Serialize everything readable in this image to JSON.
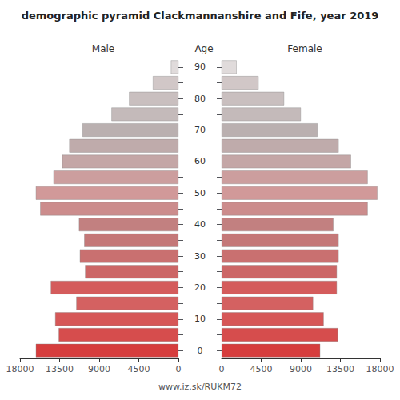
{
  "chart_data": {
    "type": "bar",
    "orientation": "horizontal",
    "title": "demographic pyramid Clackmannanshire and Fife, year 2019",
    "ylabel": "Age",
    "categories": [
      "0",
      null,
      "10",
      null,
      "20",
      null,
      "30",
      null,
      "40",
      null,
      "50",
      null,
      "60",
      null,
      "70",
      null,
      "80",
      null,
      "90"
    ],
    "series": [
      {
        "name": "Male",
        "values": [
          16200,
          13600,
          14000,
          11600,
          14500,
          10600,
          11200,
          10700,
          11300,
          15700,
          16200,
          14200,
          13200,
          12400,
          10900,
          7600,
          5600,
          2900,
          850
        ],
        "colors": [
          "#D63D3D",
          "#D64D4D",
          "#D65757",
          "#D46161",
          "#D45C5C",
          "#CC6666",
          "#C97070",
          "#C47878",
          "#C28080",
          "#CC8C8C",
          "#D19999",
          "#CC9E9E",
          "#C4A6A6",
          "#BFABAB",
          "#BAB0B0",
          "#C4BABA",
          "#C9BFBF",
          "#D1C7C7",
          "#E0DBDB"
        ]
      },
      {
        "name": "Female",
        "values": [
          11200,
          13200,
          11600,
          10400,
          13100,
          13100,
          13300,
          13300,
          12700,
          16600,
          17700,
          16600,
          14700,
          13300,
          10900,
          9000,
          7100,
          4200,
          1700
        ],
        "colors": [
          "#D63D3D",
          "#D64D4D",
          "#D65757",
          "#D46161",
          "#D45C5C",
          "#CC6666",
          "#C97070",
          "#C47878",
          "#C28080",
          "#CC8C8C",
          "#D19999",
          "#CC9E9E",
          "#C4A6A6",
          "#BFABAB",
          "#BAB0B0",
          "#C4BABA",
          "#C9BFBF",
          "#D1C7C7",
          "#E0DBDB"
        ]
      }
    ],
    "xlim": [
      0,
      18000
    ],
    "xticks": [
      0,
      4500,
      9000,
      13500,
      18000
    ],
    "grid": false,
    "annotations": [
      "www.iz.sk/RUKM72"
    ]
  }
}
